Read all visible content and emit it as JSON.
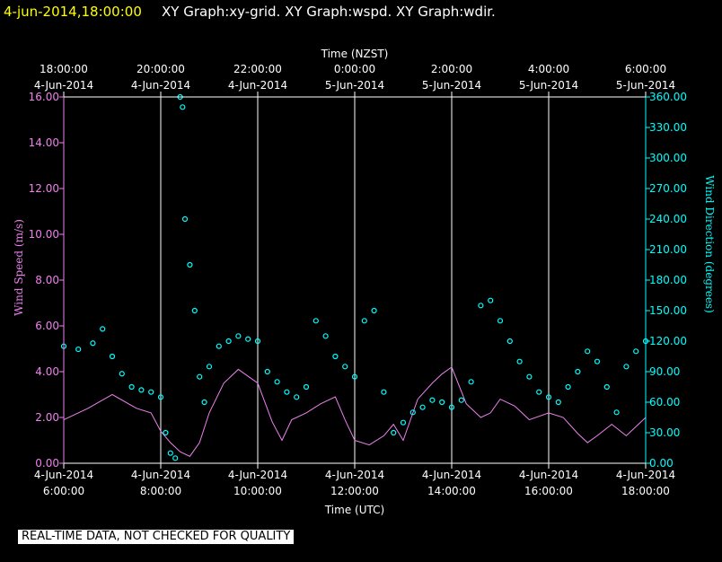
{
  "header": {
    "timestamp": "4-jun-2014,18:00:00",
    "graphs": "XY Graph:xy-grid.  XY Graph:wspd.  XY Graph:wdir."
  },
  "notice": "REAL-TIME DATA, NOT CHECKED FOR QUALITY",
  "colors": {
    "background": "#000000",
    "timestamp": "#ffff00",
    "text": "#ffffff",
    "wind_speed": "#ee82ee",
    "wind_direction": "#00ffff",
    "grid": "#ffffff"
  },
  "chart_data": {
    "type": "line",
    "top_axis": {
      "label": "Time (NZST)",
      "ticks": [
        {
          "time": "18:00:00",
          "date": "4-Jun-2014"
        },
        {
          "time": "20:00:00",
          "date": "4-Jun-2014"
        },
        {
          "time": "22:00:00",
          "date": "4-Jun-2014"
        },
        {
          "time": "0:00:00",
          "date": "5-Jun-2014"
        },
        {
          "time": "2:00:00",
          "date": "5-Jun-2014"
        },
        {
          "time": "4:00:00",
          "date": "5-Jun-2014"
        },
        {
          "time": "6:00:00",
          "date": "5-Jun-2014"
        }
      ]
    },
    "bottom_axis": {
      "label": "Time (UTC)",
      "ticks": [
        {
          "date": "4-Jun-2014",
          "time": "6:00:00"
        },
        {
          "date": "4-Jun-2014",
          "time": "8:00:00"
        },
        {
          "date": "4-Jun-2014",
          "time": "10:00:00"
        },
        {
          "date": "4-Jun-2014",
          "time": "12:00:00"
        },
        {
          "date": "4-Jun-2014",
          "time": "14:00:00"
        },
        {
          "date": "4-Jun-2014",
          "time": "16:00:00"
        },
        {
          "date": "4-Jun-2014",
          "time": "18:00:00"
        }
      ]
    },
    "left_axis": {
      "label": "Wind Speed (m/s)",
      "ylim": [
        0,
        16
      ],
      "tick_labels": [
        "0.00",
        "2.00",
        "4.00",
        "6.00",
        "8.00",
        "10.00",
        "12.00",
        "14.00",
        "16.00"
      ]
    },
    "right_axis": {
      "label": "Wind Direction (degrees)",
      "ylim": [
        0,
        360
      ],
      "tick_labels": [
        "0.00",
        "30.00",
        "60.00",
        "90.00",
        "120.00",
        "150.00",
        "180.00",
        "210.00",
        "240.00",
        "270.00",
        "300.00",
        "330.00",
        "360.00"
      ]
    },
    "grid": "vertical lines at each time tick",
    "series": [
      {
        "axis": "left",
        "style": "line",
        "x": [
          6.0,
          6.5,
          7.0,
          7.5,
          7.8,
          8.0,
          8.2,
          8.4,
          8.6,
          8.8,
          9.0,
          9.3,
          9.6,
          10.0,
          10.3,
          10.5,
          10.7,
          11.0,
          11.3,
          11.6,
          11.8,
          12.0,
          12.3,
          12.6,
          12.8,
          13.0,
          13.3,
          13.6,
          13.8,
          14.0,
          14.3,
          14.6,
          14.8,
          15.0,
          15.3,
          15.6,
          16.0,
          16.3,
          16.6,
          16.8,
          17.0,
          17.3,
          17.6,
          18.0
        ],
        "y": [
          1.9,
          2.4,
          3.0,
          2.4,
          2.2,
          1.4,
          0.9,
          0.5,
          0.3,
          0.9,
          2.2,
          3.5,
          4.1,
          3.5,
          1.8,
          1.0,
          1.9,
          2.2,
          2.6,
          2.9,
          1.9,
          1.0,
          0.8,
          1.2,
          1.7,
          1.0,
          2.8,
          3.5,
          3.9,
          4.2,
          2.6,
          2.0,
          2.2,
          2.8,
          2.5,
          1.9,
          2.2,
          2.0,
          1.3,
          0.9,
          1.2,
          1.7,
          1.2,
          2.0
        ]
      },
      {
        "axis": "right",
        "style": "points",
        "x": [
          6.0,
          6.3,
          6.6,
          6.8,
          7.0,
          7.2,
          7.4,
          7.6,
          7.8,
          8.0,
          8.1,
          8.2,
          8.3,
          8.4,
          8.45,
          8.5,
          8.6,
          8.7,
          8.8,
          8.9,
          9.0,
          9.2,
          9.4,
          9.6,
          9.8,
          10.0,
          10.2,
          10.4,
          10.6,
          10.8,
          11.0,
          11.2,
          11.4,
          11.6,
          11.8,
          12.0,
          12.2,
          12.4,
          12.6,
          12.8,
          13.0,
          13.2,
          13.4,
          13.6,
          13.8,
          14.0,
          14.2,
          14.4,
          14.6,
          14.8,
          15.0,
          15.2,
          15.4,
          15.6,
          15.8,
          16.0,
          16.2,
          16.4,
          16.6,
          16.8,
          17.0,
          17.2,
          17.4,
          17.6,
          17.8,
          18.0
        ],
        "y": [
          115,
          112,
          118,
          132,
          105,
          88,
          75,
          72,
          70,
          65,
          30,
          10,
          5,
          360,
          350,
          240,
          195,
          150,
          85,
          60,
          95,
          115,
          120,
          125,
          122,
          120,
          90,
          80,
          70,
          65,
          75,
          140,
          125,
          105,
          95,
          85,
          140,
          150,
          70,
          30,
          40,
          50,
          55,
          62,
          60,
          55,
          62,
          80,
          155,
          160,
          140,
          120,
          100,
          85,
          70,
          65,
          60,
          75,
          90,
          110,
          100,
          75,
          50,
          95,
          110,
          120
        ]
      }
    ]
  }
}
